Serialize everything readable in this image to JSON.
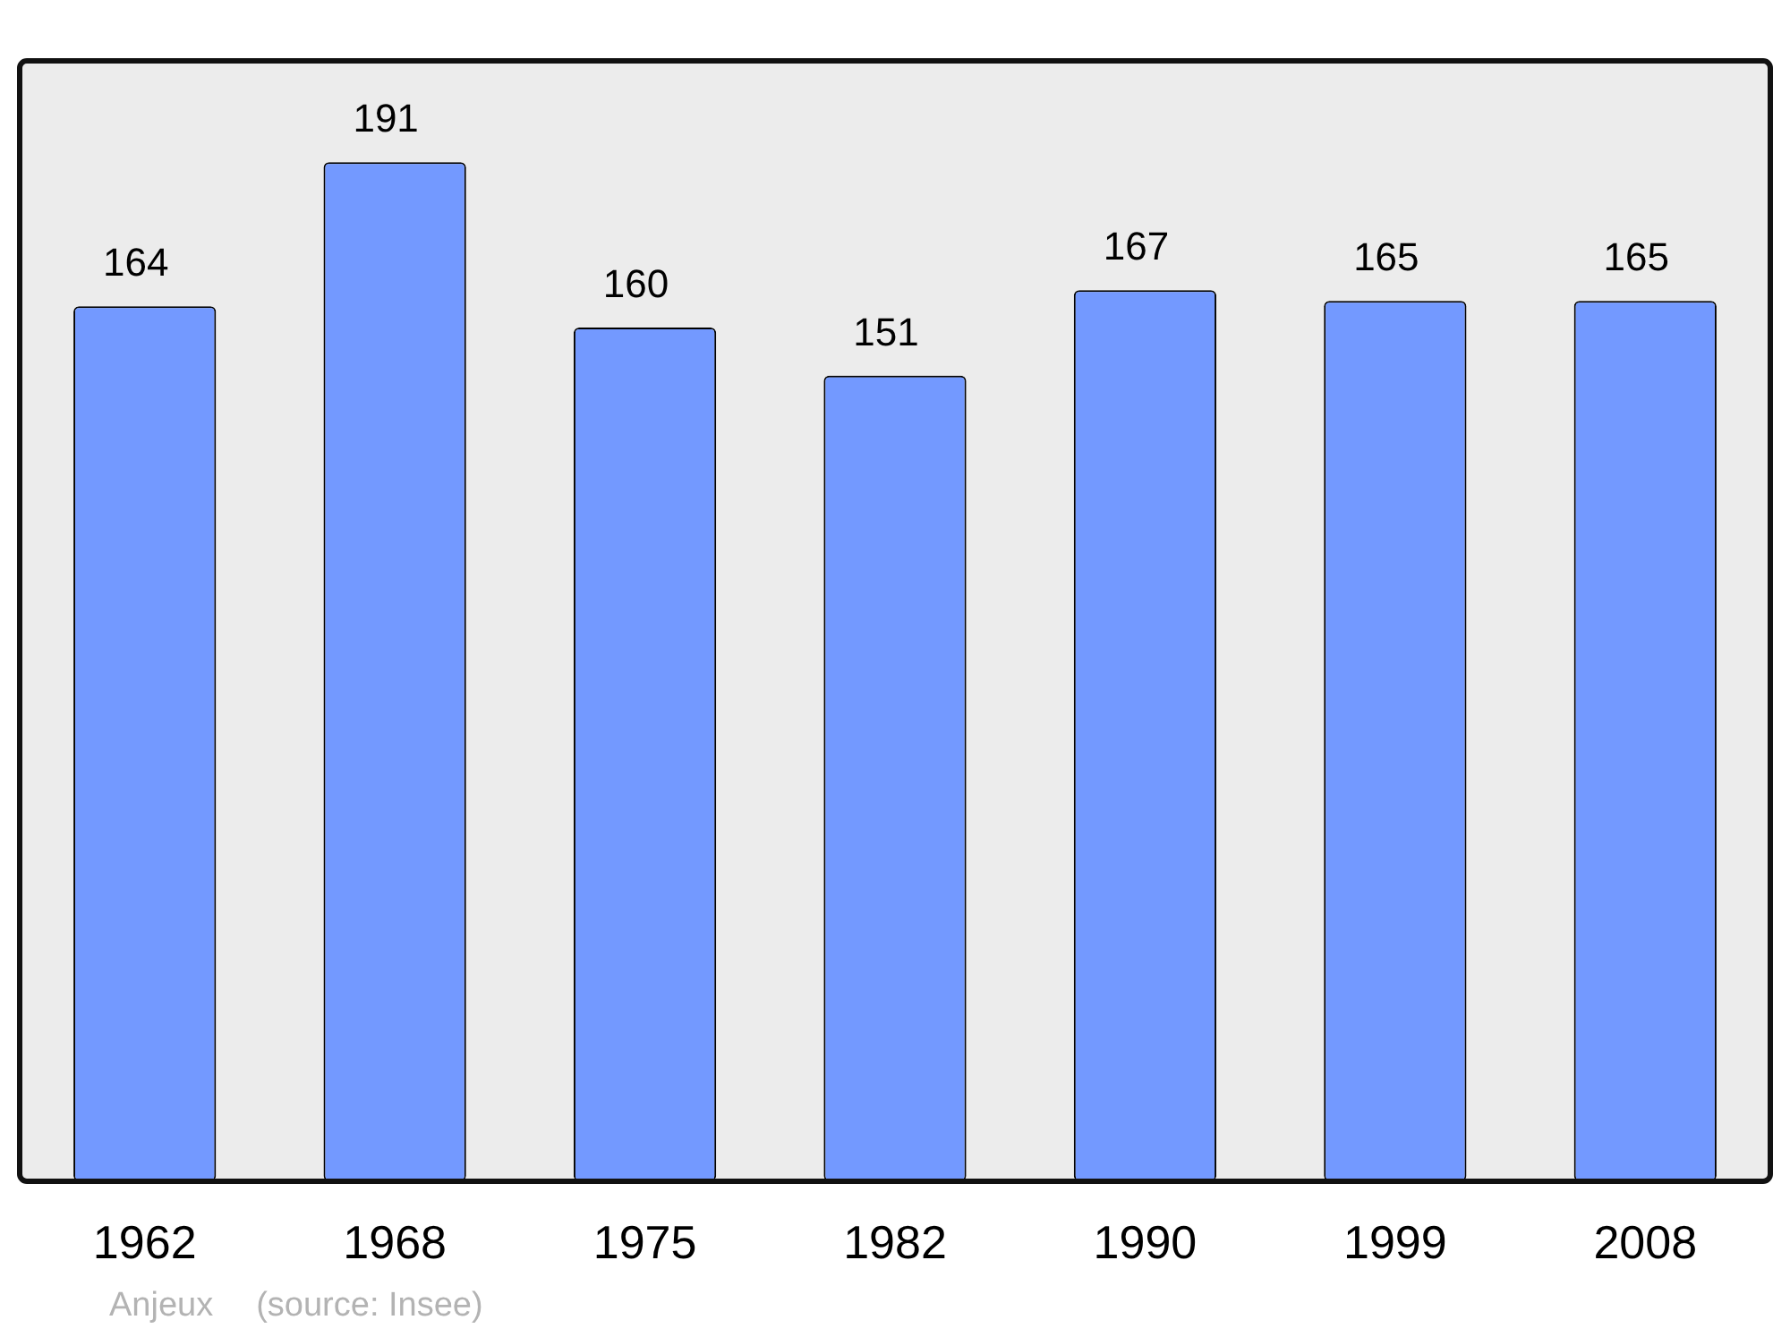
{
  "chart_data": {
    "type": "bar",
    "categories": [
      "1962",
      "1968",
      "1975",
      "1982",
      "1990",
      "1999",
      "2008"
    ],
    "values": [
      164,
      191,
      160,
      151,
      167,
      165,
      165
    ],
    "color": "#7399ff",
    "ylim": [
      0,
      210
    ],
    "data_labels": true,
    "grid": false,
    "legend": false,
    "annotations": [
      "Anjeux",
      "(source: Insee)"
    ]
  }
}
